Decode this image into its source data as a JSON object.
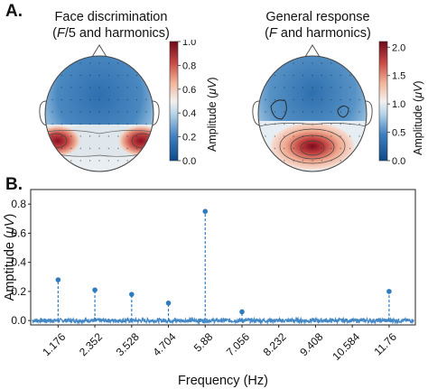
{
  "panel_a": {
    "letter": "A.",
    "left_map": {
      "title_line1": "Face discrimination",
      "title_line2_parts": [
        "(",
        "F",
        "/5 and harmonics)"
      ],
      "colorbar": {
        "ticks": [
          "1.0",
          "0.8",
          "0.6",
          "0.4",
          "0.2",
          "0.0"
        ],
        "label_parts": [
          "Amplitude (",
          "μV",
          ")"
        ],
        "range": [
          0.0,
          1.0
        ]
      }
    },
    "right_map": {
      "title_line1": "General response",
      "title_line2_parts": [
        "(",
        "F",
        " and harmonics)"
      ],
      "colorbar": {
        "ticks": [
          "2.0",
          "1.5",
          "1.0",
          "0.5",
          "0.0"
        ],
        "label_parts": [
          "Amplitude (",
          "μV",
          ")"
        ],
        "range": [
          0.0,
          2.1
        ]
      }
    },
    "colors": {
      "low": "#0d4a8a",
      "mid": "#f4f1ee",
      "high": "#7a0a1c"
    }
  },
  "panel_b": {
    "letter": "B.",
    "chart_data": {
      "type": "line",
      "xlabel": "Frequency (Hz)",
      "ylabel_parts": [
        "Amptitude (",
        "μV",
        ")"
      ],
      "x_ticks": [
        1.176,
        2.352,
        3.528,
        4.704,
        5.88,
        7.056,
        8.232,
        9.408,
        10.584,
        11.76
      ],
      "x_tick_labels": [
        "1.176",
        "2.352",
        "3.528",
        "4.704",
        "5.88",
        "7.056",
        "8.232",
        "9.408",
        "10.584",
        "11.76"
      ],
      "y_ticks": [
        0.0,
        0.2,
        0.4,
        0.6,
        0.8
      ],
      "y_tick_labels": [
        "0.0",
        "0.2",
        "0.4",
        "0.6",
        "0.8"
      ],
      "xlim": [
        0.3,
        12.6
      ],
      "ylim": [
        -0.03,
        0.9
      ],
      "grid": false,
      "peaks": [
        {
          "x": 1.176,
          "y": 0.28
        },
        {
          "x": 2.352,
          "y": 0.21
        },
        {
          "x": 3.528,
          "y": 0.18
        },
        {
          "x": 4.704,
          "y": 0.12
        },
        {
          "x": 5.88,
          "y": 0.75
        },
        {
          "x": 7.056,
          "y": 0.06
        },
        {
          "x": 11.76,
          "y": 0.2
        }
      ],
      "color": "#2f7bbf"
    }
  }
}
